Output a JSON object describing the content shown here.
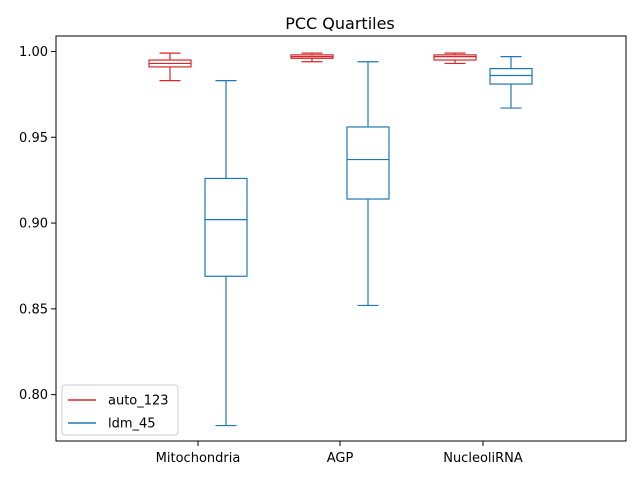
{
  "chart_data": {
    "type": "box",
    "title": "PCC Quartiles",
    "xlabel": "",
    "ylabel": "",
    "categories": [
      "Mitochondria",
      "AGP",
      "NucleoliRNA"
    ],
    "ylim": [
      0.773,
      1.009
    ],
    "yticks": [
      0.8,
      0.85,
      0.9,
      0.95,
      1.0
    ],
    "ytick_labels": [
      "0.80",
      "0.85",
      "0.90",
      "0.95",
      "1.00"
    ],
    "grid": false,
    "legend": {
      "position": "lower-left"
    },
    "series": [
      {
        "name": "auto_123",
        "color": "#d62728",
        "boxes": [
          {
            "whisker_low": 0.983,
            "q1": 0.991,
            "median": 0.993,
            "q3": 0.995,
            "whisker_high": 0.999
          },
          {
            "whisker_low": 0.994,
            "q1": 0.996,
            "median": 0.997,
            "q3": 0.998,
            "whisker_high": 0.999
          },
          {
            "whisker_low": 0.993,
            "q1": 0.995,
            "median": 0.997,
            "q3": 0.998,
            "whisker_high": 0.999
          }
        ]
      },
      {
        "name": "ldm_45",
        "color": "#1f77b4",
        "boxes": [
          {
            "whisker_low": 0.782,
            "q1": 0.869,
            "median": 0.902,
            "q3": 0.926,
            "whisker_high": 0.983
          },
          {
            "whisker_low": 0.852,
            "q1": 0.914,
            "median": 0.937,
            "q3": 0.956,
            "whisker_high": 0.994
          },
          {
            "whisker_low": 0.967,
            "q1": 0.981,
            "median": 0.986,
            "q3": 0.99,
            "whisker_high": 0.997
          }
        ]
      }
    ]
  }
}
